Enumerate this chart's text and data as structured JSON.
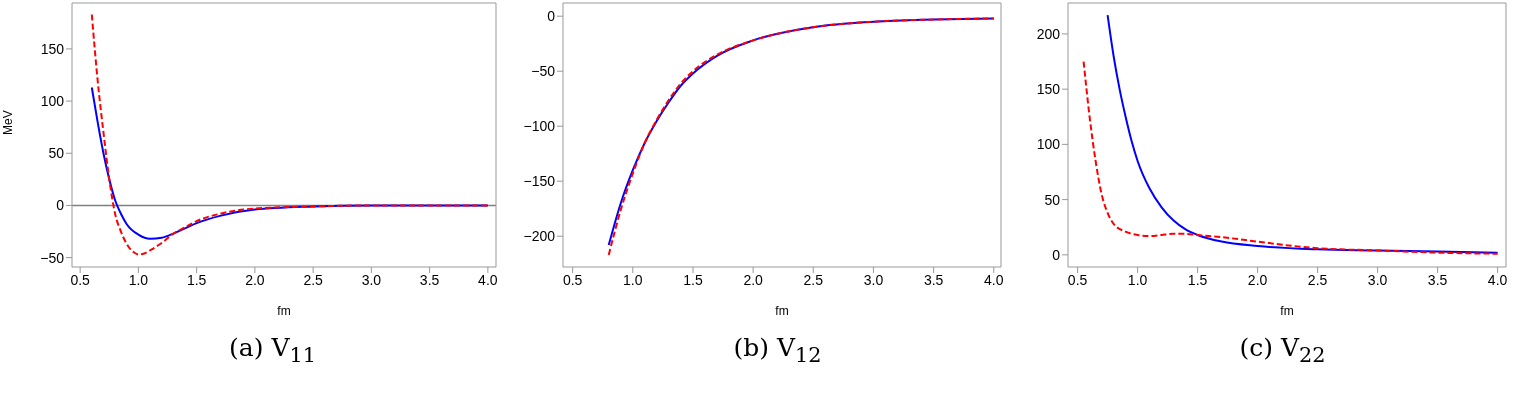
{
  "chart_data": [
    {
      "type": "line",
      "title": "(a) V$_{11}$",
      "xlabel": "fm",
      "ylabel": "MeV",
      "xlim": [
        0.43,
        4.07
      ],
      "ylim": [
        -59,
        194
      ],
      "xticks": [
        {
          "value": 0.5,
          "label": "0.5"
        },
        {
          "value": 1,
          "label": "1.0"
        },
        {
          "value": 1.5,
          "label": "1.5"
        },
        {
          "value": 2,
          "label": "2.0"
        },
        {
          "value": 2.5,
          "label": "2.5"
        },
        {
          "value": 3,
          "label": "3.0"
        },
        {
          "value": 3.5,
          "label": "3.5"
        },
        {
          "value": 4,
          "label": "4.0"
        }
      ],
      "yticks": [
        -50,
        0,
        50,
        100,
        150
      ],
      "ref_lines": [
        {
          "axis": "y",
          "value": 0,
          "color": "#808080"
        }
      ],
      "series": [
        {
          "color": "#0000ff",
          "line_style": "solid",
          "x": [
            0.6,
            0.65,
            0.7,
            0.75,
            0.8,
            0.85,
            0.9,
            1.0,
            1.1,
            1.2,
            1.3,
            1.4,
            1.5,
            1.7,
            2.0,
            2.5,
            3.0,
            4.0
          ],
          "values": [
            113,
            80,
            50,
            25,
            5,
            -8,
            -18,
            -28,
            -32,
            -31,
            -27,
            -22,
            -17,
            -10,
            -4,
            -1,
            0,
            0
          ]
        },
        {
          "color": "#ff0000",
          "line_style": "dashed",
          "x": [
            0.6,
            0.65,
            0.7,
            0.75,
            0.8,
            0.85,
            0.9,
            0.95,
            1.0,
            1.05,
            1.1,
            1.2,
            1.3,
            1.4,
            1.5,
            1.7,
            2.0,
            2.5,
            3.0,
            4.0
          ],
          "values": [
            183,
            120,
            70,
            25,
            -8,
            -25,
            -37,
            -44,
            -47,
            -46,
            -43,
            -36,
            -27,
            -21,
            -15,
            -8,
            -3,
            -1,
            0,
            0
          ]
        }
      ]
    },
    {
      "type": "line",
      "title": "(b) V$_{12}$",
      "xlabel": "fm",
      "xlim": [
        0.42,
        4.06
      ],
      "ylim": [
        -228,
        12
      ],
      "xticks": [
        {
          "value": 0.5,
          "label": "0.5"
        },
        {
          "value": 1,
          "label": "1.0"
        },
        {
          "value": 1.5,
          "label": "1.5"
        },
        {
          "value": 2,
          "label": "2.0"
        },
        {
          "value": 2.5,
          "label": "2.5"
        },
        {
          "value": 3,
          "label": "3.0"
        },
        {
          "value": 3.5,
          "label": "3.5"
        },
        {
          "value": 4,
          "label": "4.0"
        }
      ],
      "yticks": [
        -200,
        -150,
        -100,
        -50,
        0
      ],
      "series": [
        {
          "color": "#0000ff",
          "line_style": "solid",
          "x": [
            0.8,
            0.9,
            1.0,
            1.1,
            1.2,
            1.3,
            1.4,
            1.5,
            1.7,
            2.0,
            2.5,
            3.0,
            3.5,
            4.0
          ],
          "values": [
            -208,
            -170,
            -140,
            -115,
            -95,
            -78,
            -63,
            -52,
            -36,
            -22,
            -10,
            -5,
            -3,
            -2
          ]
        },
        {
          "color": "#ff0000",
          "line_style": "dashed",
          "x": [
            0.8,
            0.9,
            1.0,
            1.1,
            1.2,
            1.3,
            1.4,
            1.5,
            1.7,
            2.0,
            2.5,
            3.0,
            3.5,
            4.0
          ],
          "values": [
            -217,
            -176,
            -143,
            -115,
            -94,
            -76,
            -61,
            -50,
            -35,
            -22,
            -10,
            -5,
            -3,
            -2
          ]
        }
      ]
    },
    {
      "type": "line",
      "title": "(c) V$_{22}$",
      "xlabel": "fm",
      "xlim": [
        0.42,
        4.07
      ],
      "ylim": [
        -11,
        228
      ],
      "xticks": [
        {
          "value": 0.5,
          "label": "0.5"
        },
        {
          "value": 1,
          "label": "1.0"
        },
        {
          "value": 1.5,
          "label": "1.5"
        },
        {
          "value": 2,
          "label": "2.0"
        },
        {
          "value": 2.5,
          "label": "2.5"
        },
        {
          "value": 3,
          "label": "3.0"
        },
        {
          "value": 3.5,
          "label": "3.5"
        },
        {
          "value": 4,
          "label": "4.0"
        }
      ],
      "yticks": [
        0,
        50,
        100,
        150,
        200
      ],
      "series": [
        {
          "color": "#0000ff",
          "line_style": "solid",
          "x": [
            0.75,
            0.8,
            0.85,
            0.9,
            0.95,
            1.0,
            1.1,
            1.2,
            1.3,
            1.4,
            1.5,
            1.7,
            2.0,
            2.5,
            3.0,
            3.5,
            4.0
          ],
          "values": [
            217,
            180,
            150,
            125,
            103,
            85,
            60,
            43,
            31,
            23,
            18,
            12,
            8,
            5,
            4,
            3,
            2
          ]
        },
        {
          "color": "#ff0000",
          "line_style": "dashed",
          "x": [
            0.55,
            0.6,
            0.65,
            0.7,
            0.75,
            0.8,
            0.9,
            1.0,
            1.1,
            1.2,
            1.3,
            1.4,
            1.5,
            1.7,
            2.0,
            2.3,
            2.5,
            3.0,
            3.5,
            4.0
          ],
          "values": [
            175,
            125,
            85,
            55,
            38,
            28,
            21,
            18,
            17,
            18,
            19,
            19,
            18,
            16,
            12,
            8,
            6,
            4,
            2,
            1
          ]
        }
      ]
    }
  ]
}
